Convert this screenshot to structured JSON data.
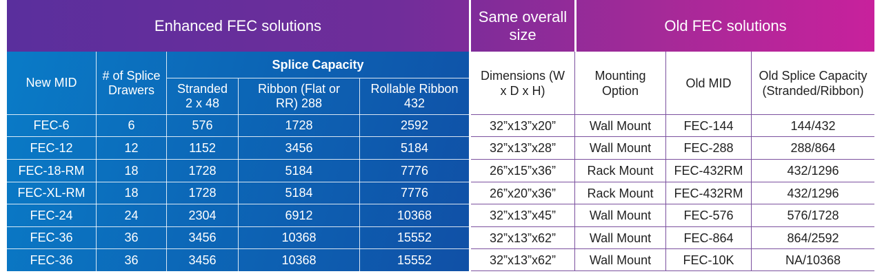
{
  "header": {
    "enhanced_title": "Enhanced FEC solutions",
    "same_size_title": "Same overall size",
    "old_title": "Old FEC solutions"
  },
  "enhanced_columns": {
    "new_mid": "New MID",
    "drawers": "# of Splice Drawers",
    "splice_capacity": "Splice Capacity",
    "stranded": "Stranded 2 x 48",
    "ribbon": "Ribbon (Flat or RR) 288",
    "rollable": "Rollable Ribbon 432"
  },
  "old_columns": {
    "dimensions": "Dimensions (W x D x H)",
    "mounting": "Mounting Option",
    "old_mid": "Old MID",
    "old_capacity": "Old Splice Capacity (Stranded/Ribbon)"
  },
  "rows": [
    {
      "new_mid": "FEC-6",
      "drawers": "6",
      "stranded": "576",
      "ribbon": "1728",
      "rollable": "2592",
      "dimensions": "32”x13”x20”",
      "mounting": "Wall Mount",
      "old_mid": "FEC-144",
      "old_capacity": "144/432"
    },
    {
      "new_mid": "FEC-12",
      "drawers": "12",
      "stranded": "1152",
      "ribbon": "3456",
      "rollable": "5184",
      "dimensions": "32”x13”x28”",
      "mounting": "Wall Mount",
      "old_mid": "FEC-288",
      "old_capacity": "288/864"
    },
    {
      "new_mid": "FEC-18-RM",
      "drawers": "18",
      "stranded": "1728",
      "ribbon": "5184",
      "rollable": "7776",
      "dimensions": "26”x15”x36”",
      "mounting": "Rack Mount",
      "old_mid": "FEC-432RM",
      "old_capacity": "432/1296"
    },
    {
      "new_mid": "FEC-XL-RM",
      "drawers": "18",
      "stranded": "1728",
      "ribbon": "5184",
      "rollable": "7776",
      "dimensions": "26”x20”x36”",
      "mounting": "Rack Mount",
      "old_mid": "FEC-432RM",
      "old_capacity": "432/1296"
    },
    {
      "new_mid": "FEC-24",
      "drawers": "24",
      "stranded": "2304",
      "ribbon": "6912",
      "rollable": "10368",
      "dimensions": "32”x13”x45”",
      "mounting": "Wall Mount",
      "old_mid": "FEC-576",
      "old_capacity": "576/1728"
    },
    {
      "new_mid": "FEC-36",
      "drawers": "36",
      "stranded": "3456",
      "ribbon": "10368",
      "rollable": "15552",
      "dimensions": "32”x13”x62”",
      "mounting": "Wall Mount",
      "old_mid": "FEC-864",
      "old_capacity": "864/2592"
    },
    {
      "new_mid": "FEC-36",
      "drawers": "36",
      "stranded": "3456",
      "ribbon": "10368",
      "rollable": "15552",
      "dimensions": "32”x13”x62”",
      "mounting": "Wall Mount",
      "old_mid": "FEC-10K",
      "old_capacity": "NA/10368"
    }
  ]
}
